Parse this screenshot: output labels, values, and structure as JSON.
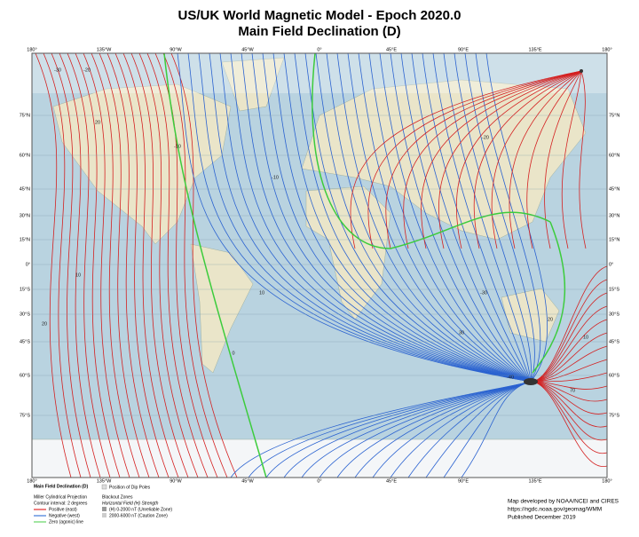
{
  "header": {
    "title": "US/UK World Magnetic Model - Epoch 2020.0",
    "subtitle": "Main Field Declination (D)"
  },
  "map": {
    "lon_labels": [
      "180°",
      "135°W",
      "90°W",
      "45°W",
      "0°",
      "45°E",
      "90°E",
      "135°E",
      "180°"
    ],
    "lat_labels": [
      "75°N",
      "60°N",
      "45°N",
      "30°N",
      "15°N",
      "0°",
      "15°S",
      "30°S",
      "45°S",
      "60°S",
      "75°S"
    ],
    "contour_labels": [
      "-30",
      "-20",
      "20",
      "10",
      "-10",
      "0",
      "-10",
      "10",
      "20",
      "-20",
      "-30",
      "20",
      "10",
      "-40",
      "70",
      "30"
    ]
  },
  "legend": {
    "title": "Main Field Declination (D)",
    "projection": "Miller Cylindrical Projection",
    "interval": "Contour interval: 2 degrees",
    "items": [
      "Positive (east)",
      "Negative (west)",
      "Zero (agonic) line"
    ],
    "dip_poles": "Position of Dip Poles",
    "blackout_title": "Blackout Zones",
    "blackout_subtitle": "Horizontal Field (H) Strength",
    "blackout_items": [
      "(H) 0-2000 nT (Unreliable Zone)",
      "2000-6000 nT (Caution Zone)"
    ]
  },
  "credits": [
    "Map developed by NOAA/NCEI and CIRES",
    "https://ngdc.noaa.gov/geomag/WMM",
    "Published December 2019"
  ]
}
